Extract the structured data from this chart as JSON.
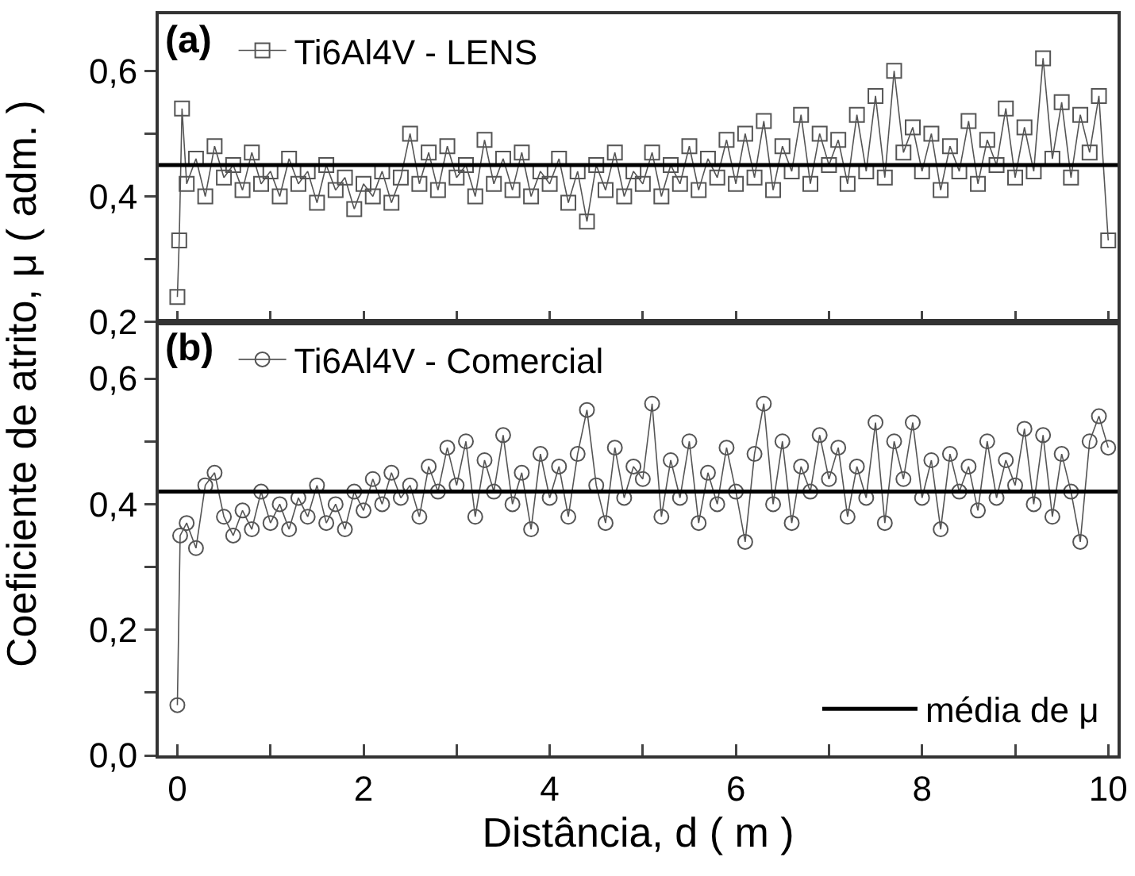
{
  "chart_data": [
    {
      "type": "line",
      "title": "(a)",
      "marker": "square",
      "legend": "top left",
      "tick_labels": "y",
      "xlim": [
        -0.2,
        10.1
      ],
      "xticks": [
        0,
        {
          "value": 1,
          "label": null
        },
        {
          "value": 2,
          "label": null
        },
        {
          "value": 3,
          "label": null
        },
        {
          "value": 4,
          "label": null
        },
        {
          "value": 5,
          "label": null
        },
        {
          "value": 6,
          "label": null
        },
        {
          "value": 7,
          "label": null
        },
        {
          "value": 8,
          "label": null
        },
        {
          "value": 9,
          "label": null
        },
        {
          "value": 10,
          "label": null
        }
      ],
      "ylim": [
        0.2,
        0.69
      ],
      "yticks": [
        {
          "value": 0.2,
          "label": "0,2"
        },
        {
          "value": 0.3,
          "label": null
        },
        {
          "value": 0.4,
          "label": "0,4"
        },
        {
          "value": 0.5,
          "label": null
        },
        {
          "value": 0.6,
          "label": "0,6"
        }
      ],
      "ref_lines": [
        {
          "axis": "y",
          "value": 0.45,
          "color": "#000000"
        }
      ],
      "series": [
        {
          "name": "Ti6Al4V - LENS",
          "color": "#555555",
          "x": [
            0,
            0.02,
            0.05,
            0.1,
            0.2,
            0.3,
            0.4,
            0.5,
            0.6,
            0.7,
            0.8,
            0.9,
            1.0,
            1.1,
            1.2,
            1.3,
            1.4,
            1.5,
            1.6,
            1.7,
            1.8,
            1.9,
            2.0,
            2.1,
            2.2,
            2.3,
            2.4,
            2.5,
            2.6,
            2.7,
            2.8,
            2.9,
            3.0,
            3.1,
            3.2,
            3.3,
            3.4,
            3.5,
            3.6,
            3.7,
            3.8,
            3.9,
            4.0,
            4.1,
            4.2,
            4.3,
            4.4,
            4.5,
            4.6,
            4.7,
            4.8,
            4.9,
            5.0,
            5.1,
            5.2,
            5.3,
            5.4,
            5.5,
            5.6,
            5.7,
            5.8,
            5.9,
            6.0,
            6.1,
            6.2,
            6.3,
            6.4,
            6.5,
            6.6,
            6.7,
            6.8,
            6.9,
            7.0,
            7.1,
            7.2,
            7.3,
            7.4,
            7.5,
            7.6,
            7.7,
            7.8,
            7.9,
            8.0,
            8.1,
            8.2,
            8.3,
            8.4,
            8.5,
            8.6,
            8.7,
            8.8,
            8.9,
            9.0,
            9.1,
            9.2,
            9.3,
            9.4,
            9.5,
            9.6,
            9.7,
            9.8,
            9.9,
            10
          ],
          "values": [
            0.24,
            0.33,
            0.54,
            0.42,
            0.46,
            0.4,
            0.48,
            0.43,
            0.45,
            0.41,
            0.47,
            0.42,
            0.44,
            0.4,
            0.46,
            0.42,
            0.44,
            0.39,
            0.45,
            0.41,
            0.43,
            0.38,
            0.42,
            0.4,
            0.44,
            0.39,
            0.43,
            0.5,
            0.42,
            0.47,
            0.41,
            0.48,
            0.43,
            0.45,
            0.4,
            0.49,
            0.42,
            0.46,
            0.41,
            0.47,
            0.4,
            0.44,
            0.42,
            0.46,
            0.39,
            0.44,
            0.36,
            0.45,
            0.41,
            0.47,
            0.4,
            0.44,
            0.42,
            0.47,
            0.4,
            0.45,
            0.42,
            0.48,
            0.41,
            0.46,
            0.43,
            0.49,
            0.42,
            0.5,
            0.43,
            0.52,
            0.41,
            0.48,
            0.44,
            0.53,
            0.42,
            0.5,
            0.45,
            0.49,
            0.42,
            0.53,
            0.44,
            0.56,
            0.43,
            0.6,
            0.47,
            0.51,
            0.44,
            0.5,
            0.41,
            0.48,
            0.44,
            0.52,
            0.42,
            0.49,
            0.45,
            0.54,
            0.43,
            0.51,
            0.44,
            0.62,
            0.46,
            0.55,
            0.43,
            0.53,
            0.47,
            0.56,
            0.33
          ]
        }
      ]
    },
    {
      "type": "line",
      "title": "(b)",
      "marker": "circle",
      "legend": "top left",
      "xlabel": "Distância, d ( m )",
      "ylabel": "Coeficiente de atrito, μ ( adm. )",
      "xlim": [
        -0.2,
        10.1
      ],
      "xticks": [
        0,
        {
          "value": 1,
          "label": null
        },
        2,
        {
          "value": 3,
          "label": null
        },
        4,
        {
          "value": 5,
          "label": null
        },
        6,
        {
          "value": 7,
          "label": null
        },
        8,
        {
          "value": 9,
          "label": null
        },
        10
      ],
      "ylim": [
        0,
        0.69
      ],
      "yticks": [
        {
          "value": 0,
          "label": "0,0"
        },
        {
          "value": 0.1,
          "label": null
        },
        {
          "value": 0.2,
          "label": "0,2"
        },
        {
          "value": 0.3,
          "label": null
        },
        {
          "value": 0.4,
          "label": "0,4"
        },
        {
          "value": 0.5,
          "label": null
        },
        {
          "value": 0.6,
          "label": "0,6"
        }
      ],
      "ref_lines": [
        {
          "axis": "y",
          "value": 0.42,
          "label": "média de μ",
          "color": "#000000"
        }
      ],
      "series": [
        {
          "name": "Ti6Al4V - Comercial",
          "color": "#555555",
          "x": [
            0,
            0.03,
            0.1,
            0.2,
            0.3,
            0.4,
            0.5,
            0.6,
            0.7,
            0.8,
            0.9,
            1.0,
            1.1,
            1.2,
            1.3,
            1.4,
            1.5,
            1.6,
            1.7,
            1.8,
            1.9,
            2.0,
            2.1,
            2.2,
            2.3,
            2.4,
            2.5,
            2.6,
            2.7,
            2.8,
            2.9,
            3.0,
            3.1,
            3.2,
            3.3,
            3.4,
            3.5,
            3.6,
            3.7,
            3.8,
            3.9,
            4.0,
            4.1,
            4.2,
            4.3,
            4.4,
            4.5,
            4.6,
            4.7,
            4.8,
            4.9,
            5.0,
            5.1,
            5.2,
            5.3,
            5.4,
            5.5,
            5.6,
            5.7,
            5.8,
            5.9,
            6.0,
            6.1,
            6.2,
            6.3,
            6.4,
            6.5,
            6.6,
            6.7,
            6.8,
            6.9,
            7.0,
            7.1,
            7.2,
            7.3,
            7.4,
            7.5,
            7.6,
            7.7,
            7.8,
            7.9,
            8.0,
            8.1,
            8.2,
            8.3,
            8.4,
            8.5,
            8.6,
            8.7,
            8.8,
            8.9,
            9.0,
            9.1,
            9.2,
            9.3,
            9.4,
            9.5,
            9.6,
            9.7,
            9.8,
            9.9,
            10
          ],
          "values": [
            0.08,
            0.35,
            0.37,
            0.33,
            0.43,
            0.45,
            0.38,
            0.35,
            0.39,
            0.36,
            0.42,
            0.37,
            0.4,
            0.36,
            0.41,
            0.38,
            0.43,
            0.37,
            0.4,
            0.36,
            0.42,
            0.39,
            0.44,
            0.4,
            0.45,
            0.41,
            0.43,
            0.38,
            0.46,
            0.42,
            0.49,
            0.43,
            0.5,
            0.38,
            0.47,
            0.42,
            0.51,
            0.4,
            0.45,
            0.36,
            0.48,
            0.41,
            0.46,
            0.38,
            0.48,
            0.55,
            0.43,
            0.37,
            0.49,
            0.41,
            0.46,
            0.44,
            0.56,
            0.38,
            0.47,
            0.41,
            0.5,
            0.37,
            0.45,
            0.4,
            0.49,
            0.42,
            0.34,
            0.48,
            0.56,
            0.4,
            0.5,
            0.37,
            0.46,
            0.42,
            0.51,
            0.44,
            0.49,
            0.38,
            0.46,
            0.41,
            0.53,
            0.37,
            0.5,
            0.44,
            0.53,
            0.41,
            0.47,
            0.36,
            0.48,
            0.42,
            0.46,
            0.39,
            0.5,
            0.41,
            0.47,
            0.43,
            0.52,
            0.4,
            0.51,
            0.38,
            0.48,
            0.42,
            0.34,
            0.5,
            0.54,
            0.49
          ]
        }
      ]
    }
  ]
}
